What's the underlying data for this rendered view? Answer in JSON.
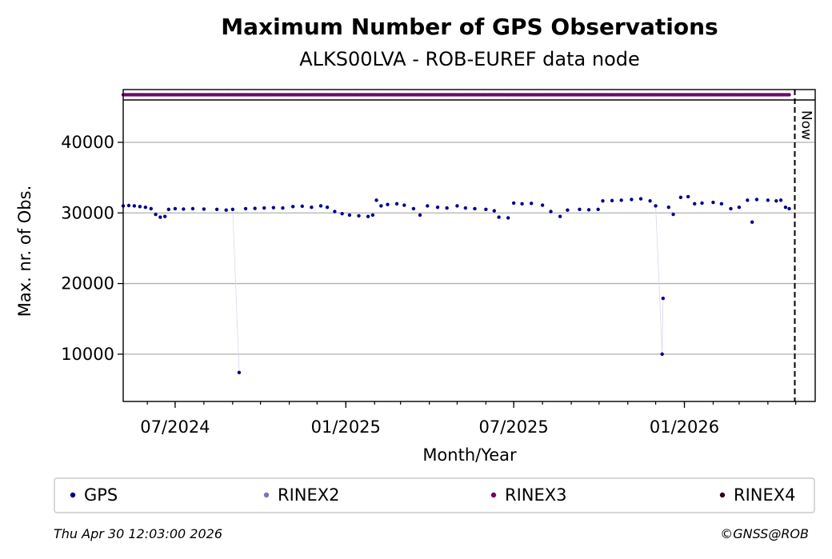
{
  "chart_data": {
    "type": "scatter",
    "title": "Maximum Number of GPS Observations",
    "subtitle": "ALKS00LVA - ROB-EUREF data node",
    "xlabel": "Month/Year",
    "ylabel": "Max. nr. of Obs.",
    "x_range": [
      "2024-05-06",
      "2026-05-22"
    ],
    "ylim": [
      3300,
      46000
    ],
    "y_ticks": [
      10000,
      20000,
      30000,
      40000
    ],
    "x_ticks": [
      {
        "date": "2024-07-01",
        "label": "07/2024"
      },
      {
        "date": "2025-01-01",
        "label": "01/2025"
      },
      {
        "date": "2025-07-01",
        "label": "07/2025"
      },
      {
        "date": "2026-01-01",
        "label": "01/2026"
      }
    ],
    "grid": "horizontal",
    "now_marker": {
      "date": "2026-04-30",
      "label": "Now"
    },
    "legend_position": "below",
    "series": [
      {
        "name": "GPS",
        "color": "#00008B",
        "points": [
          [
            "2024-05-06",
            31000
          ],
          [
            "2024-05-12",
            31050
          ],
          [
            "2024-05-18",
            31000
          ],
          [
            "2024-05-24",
            30900
          ],
          [
            "2024-05-30",
            30800
          ],
          [
            "2024-06-05",
            30600
          ],
          [
            "2024-06-10",
            29800
          ],
          [
            "2024-06-15",
            29400
          ],
          [
            "2024-06-20",
            29500
          ],
          [
            "2024-06-24",
            30500
          ],
          [
            "2024-07-01",
            30600
          ],
          [
            "2024-07-10",
            30550
          ],
          [
            "2024-07-20",
            30600
          ],
          [
            "2024-08-01",
            30550
          ],
          [
            "2024-08-15",
            30500
          ],
          [
            "2024-08-25",
            30400
          ],
          [
            "2024-09-01",
            30500
          ],
          [
            "2024-09-08",
            7400
          ],
          [
            "2024-09-15",
            30600
          ],
          [
            "2024-09-25",
            30650
          ],
          [
            "2024-10-05",
            30700
          ],
          [
            "2024-10-15",
            30750
          ],
          [
            "2024-10-25",
            30700
          ],
          [
            "2024-11-05",
            30900
          ],
          [
            "2024-11-15",
            30950
          ],
          [
            "2024-11-25",
            30800
          ],
          [
            "2024-12-05",
            31000
          ],
          [
            "2024-12-12",
            30800
          ],
          [
            "2024-12-20",
            30200
          ],
          [
            "2024-12-28",
            29900
          ],
          [
            "2025-01-05",
            29700
          ],
          [
            "2025-01-15",
            29600
          ],
          [
            "2025-01-25",
            29500
          ],
          [
            "2025-01-30",
            29700
          ],
          [
            "2025-02-03",
            31800
          ],
          [
            "2025-02-08",
            31000
          ],
          [
            "2025-02-15",
            31200
          ],
          [
            "2025-02-25",
            31300
          ],
          [
            "2025-03-05",
            31100
          ],
          [
            "2025-03-15",
            30600
          ],
          [
            "2025-03-22",
            29700
          ],
          [
            "2025-03-30",
            31000
          ],
          [
            "2025-04-10",
            30800
          ],
          [
            "2025-04-20",
            30700
          ],
          [
            "2025-05-01",
            31000
          ],
          [
            "2025-05-10",
            30700
          ],
          [
            "2025-05-20",
            30600
          ],
          [
            "2025-06-01",
            30500
          ],
          [
            "2025-06-10",
            30300
          ],
          [
            "2025-06-15",
            29400
          ],
          [
            "2025-06-25",
            29300
          ],
          [
            "2025-07-01",
            31400
          ],
          [
            "2025-07-10",
            31300
          ],
          [
            "2025-07-20",
            31350
          ],
          [
            "2025-08-01",
            31100
          ],
          [
            "2025-08-10",
            30200
          ],
          [
            "2025-08-20",
            29500
          ],
          [
            "2025-08-28",
            30400
          ],
          [
            "2025-09-10",
            30500
          ],
          [
            "2025-09-20",
            30450
          ],
          [
            "2025-09-30",
            30500
          ],
          [
            "2025-10-05",
            31700
          ],
          [
            "2025-10-15",
            31750
          ],
          [
            "2025-10-25",
            31800
          ],
          [
            "2025-11-05",
            31900
          ],
          [
            "2025-11-15",
            32000
          ],
          [
            "2025-11-25",
            31700
          ],
          [
            "2025-12-01",
            31000
          ],
          [
            "2025-12-08",
            10000
          ],
          [
            "2025-12-09",
            17900
          ],
          [
            "2025-12-15",
            30800
          ],
          [
            "2025-12-20",
            29800
          ],
          [
            "2025-12-28",
            32200
          ],
          [
            "2026-01-05",
            32300
          ],
          [
            "2026-01-12",
            31300
          ],
          [
            "2026-01-20",
            31400
          ],
          [
            "2026-02-01",
            31500
          ],
          [
            "2026-02-10",
            31300
          ],
          [
            "2026-02-20",
            30600
          ],
          [
            "2026-03-01",
            30800
          ],
          [
            "2026-03-10",
            31800
          ],
          [
            "2026-03-15",
            28700
          ],
          [
            "2026-03-20",
            31900
          ],
          [
            "2026-04-01",
            31800
          ],
          [
            "2026-04-10",
            31700
          ],
          [
            "2026-04-15",
            31800
          ],
          [
            "2026-04-20",
            30800
          ],
          [
            "2026-04-24",
            30600
          ]
        ]
      },
      {
        "name": "RINEX2",
        "color": "#7777BB",
        "points": []
      },
      {
        "name": "RINEX3",
        "color": "#6A0A6A",
        "strip": {
          "start": "2024-05-06",
          "end": "2026-04-25"
        }
      },
      {
        "name": "RINEX4",
        "color": "#330022",
        "points": []
      }
    ]
  },
  "footer": {
    "timestamp": "Thu Apr 30 12:03:00 2026",
    "credit": "©GNSS@ROB"
  }
}
